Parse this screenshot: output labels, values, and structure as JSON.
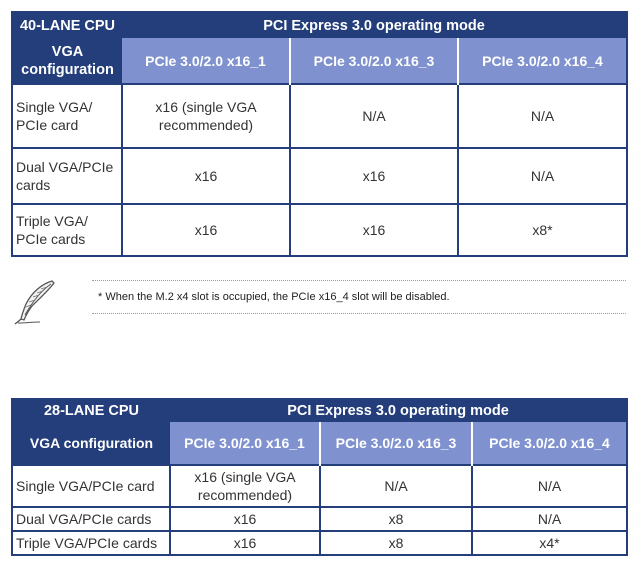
{
  "table1": {
    "cpu_label": "40-LANE CPU",
    "mode_label": "PCI Express 3.0 operating mode",
    "vga_label_line1": "VGA",
    "vga_label_line2": "configuration",
    "columns": [
      "PCIe 3.0/2.0 x16_1",
      "PCIe 3.0/2.0 x16_3",
      "PCIe 3.0/2.0 x16_4"
    ],
    "rows": [
      {
        "label_line1": "Single VGA/",
        "label_line2": "PCIe card",
        "c1_line1": "x16 (single VGA",
        "c1_line2": "recommended)",
        "c2": "N/A",
        "c3": "N/A"
      },
      {
        "label_line1": "Dual VGA/PCIe",
        "label_line2": "cards",
        "c1": "x16",
        "c2": "x16",
        "c3": "N/A"
      },
      {
        "label_line1": "Triple VGA/",
        "label_line2": "PCIe cards",
        "c1": "x16",
        "c2": "x16",
        "c3": "x8*"
      }
    ]
  },
  "note": {
    "icon": "quill-pen-icon",
    "text": "* When the M.2 x4 slot is occupied, the PCIe x16_4 slot will be disabled."
  },
  "table2": {
    "cpu_label": "28-LANE CPU",
    "mode_label": "PCI Express 3.0 operating mode",
    "vga_label": "VGA configuration",
    "columns": [
      "PCIe 3.0/2.0 x16_1",
      "PCIe 3.0/2.0 x16_3",
      "PCIe 3.0/2.0 x16_4"
    ],
    "rows": [
      {
        "label": "Single VGA/PCIe card",
        "c1_line1": "x16 (single VGA",
        "c1_line2": "recommended)",
        "c2": "N/A",
        "c3": "N/A"
      },
      {
        "label": "Dual VGA/PCIe cards",
        "c1": "x16",
        "c2": "x8",
        "c3": "N/A"
      },
      {
        "label": "Triple VGA/PCIe cards",
        "c1": "x16",
        "c2": "x8",
        "c3": "x4*"
      }
    ]
  },
  "colors": {
    "header_dark": "#233e7a",
    "header_light": "#7f92cf"
  }
}
